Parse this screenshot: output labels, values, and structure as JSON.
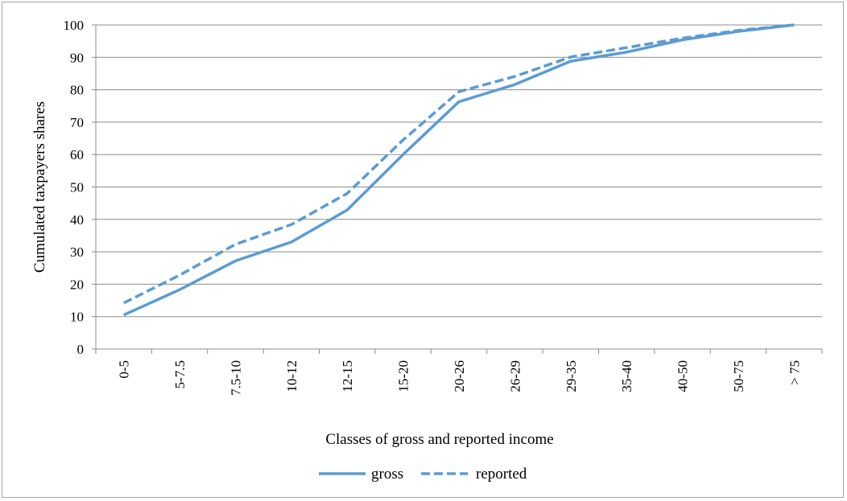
{
  "chart_data": {
    "type": "line",
    "title": "",
    "xlabel": "Classes of gross and reported income",
    "ylabel": "Cumulated taxpayers shares",
    "categories": [
      "0-5",
      "5-7.5",
      "7.5-10",
      "10-12",
      "12-15",
      "15-20",
      "20-26",
      "26-29",
      "29-35",
      "35-40",
      "40-50",
      "50-75",
      "> 75"
    ],
    "ylim": [
      0,
      100
    ],
    "yticks": [
      0,
      10,
      20,
      30,
      40,
      50,
      60,
      70,
      80,
      90,
      100
    ],
    "grid": true,
    "legend_position": "bottom",
    "series": [
      {
        "name": "gross",
        "style": "solid",
        "color": "#5b9bd5",
        "values": [
          10.5,
          18.3,
          27.2,
          33.0,
          42.9,
          60.0,
          76.3,
          81.6,
          88.8,
          91.6,
          95.4,
          98.0,
          100.0
        ]
      },
      {
        "name": "reported",
        "style": "dashed",
        "color": "#5b9bd5",
        "values": [
          14.2,
          22.8,
          32.3,
          38.4,
          48.0,
          64.5,
          79.4,
          84.1,
          90.1,
          93.0,
          95.9,
          98.3,
          100.0
        ]
      }
    ]
  }
}
